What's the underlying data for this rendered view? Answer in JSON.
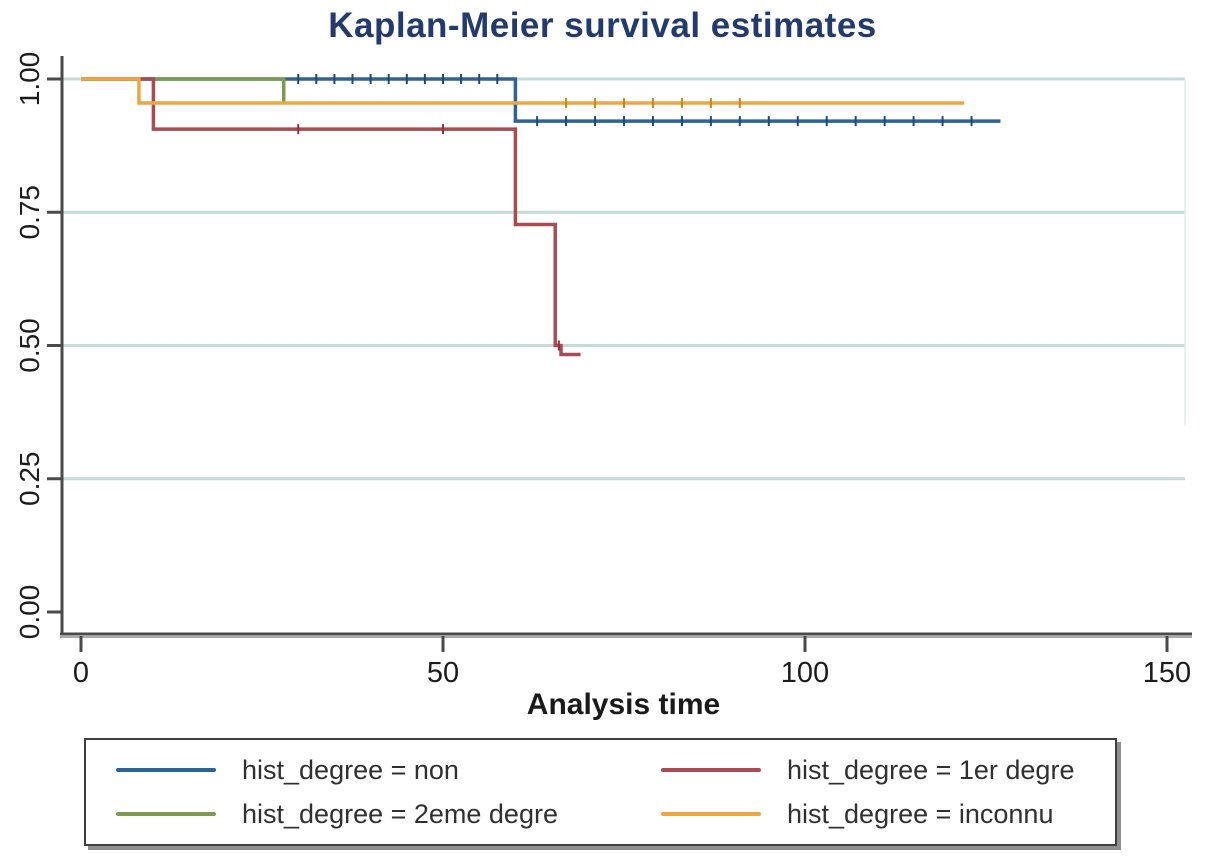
{
  "title": "Kaplan-Meier survival estimates",
  "chart_data": {
    "type": "line",
    "variant": "kaplan-meier-step",
    "title": "Kaplan-Meier survival estimates",
    "xlabel": "Analysis time",
    "ylabel": "",
    "xlim": [
      0,
      150
    ],
    "ylim": [
      0,
      1
    ],
    "xticks": [
      0,
      50,
      100,
      150
    ],
    "ytick_values": [
      0,
      0.25,
      0.5,
      0.75,
      1
    ],
    "ytick_labels": [
      "0.00",
      "0.25",
      "0.50",
      "0.75",
      "1.00"
    ],
    "gridline_values": [
      0.25,
      0.5,
      0.75,
      1.0
    ],
    "grid_on": true,
    "grid_color": "#c3dcd8",
    "legend_position": "bottom",
    "series": [
      {
        "name": "hist_degree = non",
        "color": "#2d6494",
        "tick_color": "#1d4a74",
        "steps": [
          [
            0,
            1
          ],
          [
            60,
            1
          ],
          [
            60,
            0.921
          ],
          [
            127,
            0.921
          ]
        ],
        "censor_ticks": [
          [
            30,
            1
          ],
          [
            32.5,
            1
          ],
          [
            35,
            1
          ],
          [
            37.5,
            1
          ],
          [
            40,
            1
          ],
          [
            42.5,
            1
          ],
          [
            45,
            1
          ],
          [
            47.5,
            1
          ],
          [
            50,
            1
          ],
          [
            52.5,
            1
          ],
          [
            55,
            1
          ],
          [
            57.5,
            1
          ],
          [
            63,
            0.921
          ],
          [
            67,
            0.921
          ],
          [
            71,
            0.921
          ],
          [
            75,
            0.921
          ],
          [
            79,
            0.921
          ],
          [
            83,
            0.921
          ],
          [
            87,
            0.921
          ],
          [
            91,
            0.921
          ],
          [
            95,
            0.921
          ],
          [
            99,
            0.921
          ],
          [
            103,
            0.921
          ],
          [
            107,
            0.921
          ],
          [
            111,
            0.921
          ],
          [
            115,
            0.921
          ],
          [
            119,
            0.921
          ],
          [
            123,
            0.921
          ]
        ]
      },
      {
        "name": "hist_degree = 2eme degre",
        "color": "#7b9c4e",
        "tick_color": "#5e7d36",
        "steps": [
          [
            0,
            1
          ],
          [
            28,
            1
          ],
          [
            28,
            0.955
          ]
        ],
        "censor_ticks": []
      },
      {
        "name": "hist_degree = 1er degre",
        "color": "#a84b53",
        "tick_color": "#8a353d",
        "steps": [
          [
            0,
            1
          ],
          [
            10,
            1
          ],
          [
            10,
            0.906
          ],
          [
            60,
            0.906
          ],
          [
            60,
            0.727
          ],
          [
            65.5,
            0.727
          ],
          [
            65.5,
            0.5
          ],
          [
            66.3,
            0.5
          ],
          [
            66.3,
            0.483
          ],
          [
            69,
            0.483
          ]
        ],
        "censor_ticks": [
          [
            30,
            0.906
          ],
          [
            50,
            0.906
          ],
          [
            66,
            0.5
          ]
        ]
      },
      {
        "name": "hist_degree = inconnu",
        "color": "#efa73d",
        "tick_color": "#cc8517",
        "steps": [
          [
            0,
            1
          ],
          [
            8,
            1
          ],
          [
            8,
            0.955
          ],
          [
            122,
            0.955
          ]
        ],
        "censor_ticks": [
          [
            67,
            0.955
          ],
          [
            71,
            0.955
          ],
          [
            75,
            0.955
          ],
          [
            79,
            0.955
          ],
          [
            83,
            0.955
          ],
          [
            87,
            0.955
          ],
          [
            91,
            0.955
          ]
        ]
      }
    ]
  },
  "legend": {
    "items": [
      {
        "label": "hist_degree = non",
        "color": "#2d6494"
      },
      {
        "label": "hist_degree = 1er degre",
        "color": "#a84b53"
      },
      {
        "label": "hist_degree = 2eme degre",
        "color": "#7b9c4e"
      },
      {
        "label": "hist_degree = inconnu",
        "color": "#efa73d"
      }
    ]
  },
  "colors": {
    "title": "#233a6d",
    "axis": "#4a4a4a",
    "axis_shadow": "#a9a9a9",
    "tick_text": "#1c1c1c",
    "grid": "#c3dcd8",
    "plot_right_edge": "#e3ecec"
  }
}
